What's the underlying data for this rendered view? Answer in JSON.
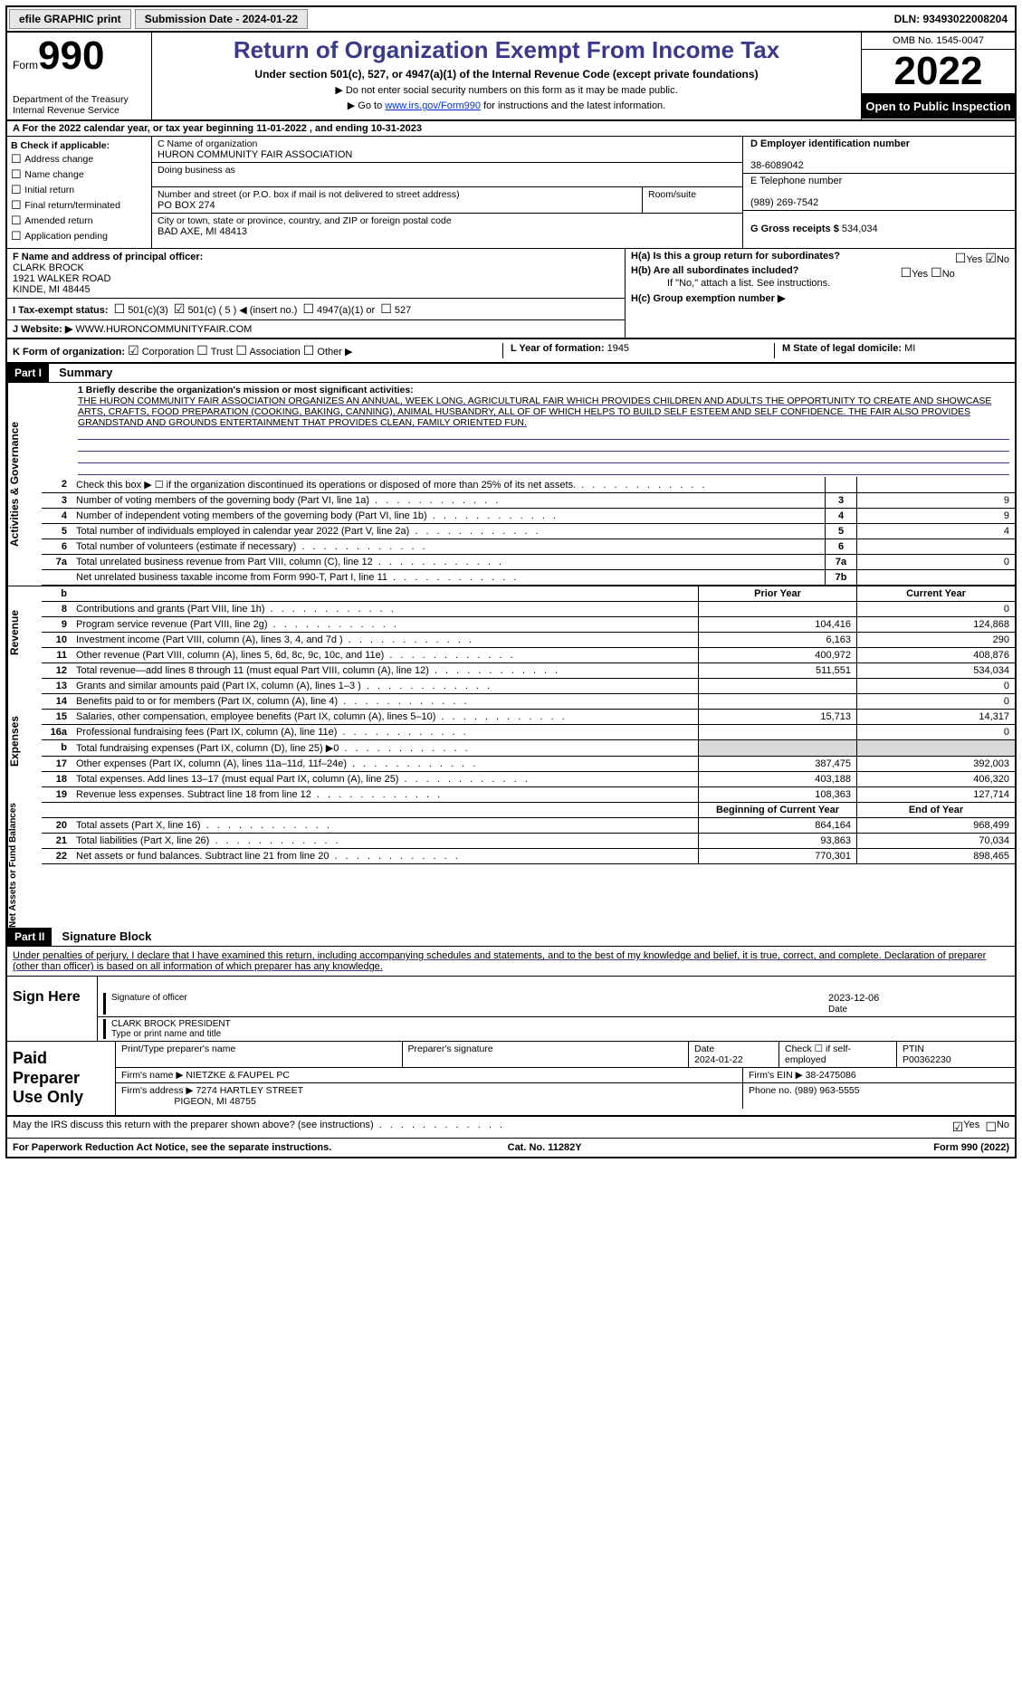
{
  "topbar": {
    "efile": "efile GRAPHIC print",
    "submission": "Submission Date - 2024-01-22",
    "dln": "DLN: 93493022008204"
  },
  "header": {
    "form_word": "Form",
    "form_no": "990",
    "dept": "Department of the Treasury\nInternal Revenue Service",
    "title": "Return of Organization Exempt From Income Tax",
    "sub1": "Under section 501(c), 527, or 4947(a)(1) of the Internal Revenue Code (except private foundations)",
    "sub2": "Do not enter social security numbers on this form as it may be made public.",
    "sub3_a": "Go to ",
    "sub3_link": "www.irs.gov/Form990",
    "sub3_b": " for instructions and the latest information.",
    "omb": "OMB No. 1545-0047",
    "year": "2022",
    "open_pub": "Open to Public Inspection"
  },
  "row_a": "A For the 2022 calendar year, or tax year beginning 11-01-2022    , and ending 10-31-2023",
  "col_b": {
    "title": "B Check if applicable:",
    "opts": [
      "Address change",
      "Name change",
      "Initial return",
      "Final return/terminated",
      "Amended return",
      "Application pending"
    ]
  },
  "col_c": {
    "name_lbl": "C Name of organization",
    "name": "HURON COMMUNITY FAIR ASSOCIATION",
    "dba_lbl": "Doing business as",
    "dba": "",
    "addr_lbl": "Number and street (or P.O. box if mail is not delivered to street address)",
    "room_lbl": "Room/suite",
    "addr": "PO BOX 274",
    "city_lbl": "City or town, state or province, country, and ZIP or foreign postal code",
    "city": "BAD AXE, MI  48413"
  },
  "col_d": {
    "ein_lbl": "D Employer identification number",
    "ein": "38-6089042",
    "tel_lbl": "E Telephone number",
    "tel": "(989) 269-7542",
    "gross_lbl": "G Gross receipts $",
    "gross": "534,034"
  },
  "fg": {
    "f_lbl": "F Name and address of principal officer:",
    "f_name": "CLARK BROCK",
    "f_addr1": "1921 WALKER ROAD",
    "f_addr2": "KINDE, MI  48445"
  },
  "h": {
    "ha": "H(a)  Is this a group return for subordinates?",
    "hb": "H(b)  Are all subordinates included?",
    "hb_note": "If \"No,\" attach a list. See instructions.",
    "hc": "H(c)  Group exemption number ▶",
    "yes": "Yes",
    "no": "No"
  },
  "i": {
    "lbl": "I   Tax-exempt status:",
    "o501c3": "501(c)(3)",
    "o501c": "501(c) ( 5 ) ◀ (insert no.)",
    "o4947": "4947(a)(1) or",
    "o527": "527"
  },
  "j": {
    "lbl": "J   Website: ▶",
    "val": "WWW.HURONCOMMUNITYFAIR.COM"
  },
  "k": {
    "lbl": "K Form of organization:",
    "corp": "Corporation",
    "trust": "Trust",
    "assoc": "Association",
    "other": "Other ▶"
  },
  "l": {
    "lbl": "L Year of formation:",
    "val": "1945"
  },
  "m": {
    "lbl": "M State of legal domicile:",
    "val": "MI"
  },
  "part1": {
    "hdr": "Part I",
    "title": "Summary"
  },
  "mission": {
    "lbl": "1   Briefly describe the organization's mission or most significant activities:",
    "text": "THE HURON COMMUNITY FAIR ASSOCIATION ORGANIZES AN ANNUAL, WEEK LONG, AGRICULTURAL FAIR WHICH PROVIDES CHILDREN AND ADULTS THE OPPORTUNITY TO CREATE AND SHOWCASE ARTS, CRAFTS, FOOD PREPARATION (COOKING, BAKING, CANNING), ANIMAL HUSBANDRY, ALL OF OF WHICH HELPS TO BUILD SELF ESTEEM AND SELF CONFIDENCE. THE FAIR ALSO PROVIDES GRANDSTAND AND GROUNDS ENTERTAINMENT THAT PROVIDES CLEAN, FAMILY ORIENTED FUN."
  },
  "gov_lines": [
    {
      "n": "2",
      "t": "Check this box ▶ ☐ if the organization discontinued its operations or disposed of more than 25% of its net assets.",
      "b": "",
      "v": ""
    },
    {
      "n": "3",
      "t": "Number of voting members of the governing body (Part VI, line 1a)",
      "b": "3",
      "v": "9"
    },
    {
      "n": "4",
      "t": "Number of independent voting members of the governing body (Part VI, line 1b)",
      "b": "4",
      "v": "9"
    },
    {
      "n": "5",
      "t": "Total number of individuals employed in calendar year 2022 (Part V, line 2a)",
      "b": "5",
      "v": "4"
    },
    {
      "n": "6",
      "t": "Total number of volunteers (estimate if necessary)",
      "b": "6",
      "v": ""
    },
    {
      "n": "7a",
      "t": "Total unrelated business revenue from Part VIII, column (C), line 12",
      "b": "7a",
      "v": "0"
    },
    {
      "n": "",
      "t": "Net unrelated business taxable income from Form 990-T, Part I, line 11",
      "b": "7b",
      "v": ""
    }
  ],
  "col_hdr": {
    "b": "b",
    "prior": "Prior Year",
    "curr": "Current Year"
  },
  "rev_lines": [
    {
      "n": "8",
      "t": "Contributions and grants (Part VIII, line 1h)",
      "p": "",
      "c": "0"
    },
    {
      "n": "9",
      "t": "Program service revenue (Part VIII, line 2g)",
      "p": "104,416",
      "c": "124,868"
    },
    {
      "n": "10",
      "t": "Investment income (Part VIII, column (A), lines 3, 4, and 7d )",
      "p": "6,163",
      "c": "290"
    },
    {
      "n": "11",
      "t": "Other revenue (Part VIII, column (A), lines 5, 6d, 8c, 9c, 10c, and 11e)",
      "p": "400,972",
      "c": "408,876"
    },
    {
      "n": "12",
      "t": "Total revenue—add lines 8 through 11 (must equal Part VIII, column (A), line 12)",
      "p": "511,551",
      "c": "534,034"
    }
  ],
  "exp_lines": [
    {
      "n": "13",
      "t": "Grants and similar amounts paid (Part IX, column (A), lines 1–3 )",
      "p": "",
      "c": "0"
    },
    {
      "n": "14",
      "t": "Benefits paid to or for members (Part IX, column (A), line 4)",
      "p": "",
      "c": "0"
    },
    {
      "n": "15",
      "t": "Salaries, other compensation, employee benefits (Part IX, column (A), lines 5–10)",
      "p": "15,713",
      "c": "14,317"
    },
    {
      "n": "16a",
      "t": "Professional fundraising fees (Part IX, column (A), line 11e)",
      "p": "",
      "c": "0"
    },
    {
      "n": "b",
      "t": "Total fundraising expenses (Part IX, column (D), line 25) ▶0",
      "p": "shade",
      "c": "shade"
    },
    {
      "n": "17",
      "t": "Other expenses (Part IX, column (A), lines 11a–11d, 11f–24e)",
      "p": "387,475",
      "c": "392,003"
    },
    {
      "n": "18",
      "t": "Total expenses. Add lines 13–17 (must equal Part IX, column (A), line 25)",
      "p": "403,188",
      "c": "406,320"
    },
    {
      "n": "19",
      "t": "Revenue less expenses. Subtract line 18 from line 12",
      "p": "108,363",
      "c": "127,714"
    }
  ],
  "na_hdr": {
    "prior": "Beginning of Current Year",
    "curr": "End of Year"
  },
  "na_lines": [
    {
      "n": "20",
      "t": "Total assets (Part X, line 16)",
      "p": "864,164",
      "c": "968,499"
    },
    {
      "n": "21",
      "t": "Total liabilities (Part X, line 26)",
      "p": "93,863",
      "c": "70,034"
    },
    {
      "n": "22",
      "t": "Net assets or fund balances. Subtract line 21 from line 20",
      "p": "770,301",
      "c": "898,465"
    }
  ],
  "vside": {
    "gov": "Activities & Governance",
    "rev": "Revenue",
    "exp": "Expenses",
    "na": "Net Assets or\nFund Balances"
  },
  "part2": {
    "hdr": "Part II",
    "title": "Signature Block"
  },
  "sig": {
    "decl": "Under penalties of perjury, I declare that I have examined this return, including accompanying schedules and statements, and to the best of my knowledge and belief, it is true, correct, and complete. Declaration of preparer (other than officer) is based on all information of which preparer has any knowledge.",
    "here": "Sign Here",
    "sig_of": "Signature of officer",
    "date": "Date",
    "sig_date": "2023-12-06",
    "name_title": "CLARK BROCK PRESIDENT",
    "type_name": "Type or print name and title"
  },
  "prep": {
    "title": "Paid Preparer Use Only",
    "h_name": "Print/Type preparer's name",
    "h_sig": "Preparer's signature",
    "h_date": "Date",
    "h_chk": "Check ☐ if self-employed",
    "h_ptin": "PTIN",
    "date": "2024-01-22",
    "ptin": "P00362230",
    "firm_name_lbl": "Firm's name ▶",
    "firm_name": "NIETZKE & FAUPEL PC",
    "firm_ein_lbl": "Firm's EIN ▶",
    "firm_ein": "38-2475086",
    "firm_addr_lbl": "Firm's address ▶",
    "firm_addr1": "7274 HARTLEY STREET",
    "firm_addr2": "PIGEON, MI  48755",
    "phone_lbl": "Phone no.",
    "phone": "(989) 963-5555"
  },
  "discuss": {
    "t": "May the IRS discuss this return with the preparer shown above? (see instructions)",
    "yes": "Yes",
    "no": "No"
  },
  "footer": {
    "l": "For Paperwork Reduction Act Notice, see the separate instructions.",
    "m": "Cat. No. 11282Y",
    "r": "Form 990 (2022)"
  }
}
